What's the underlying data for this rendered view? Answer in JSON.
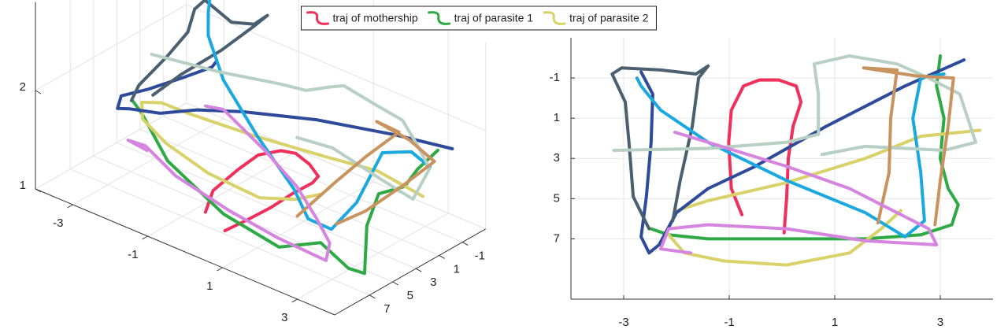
{
  "chart_data": {
    "type": "trajectory",
    "legend_position": "top",
    "grid": true,
    "xlim": [
      -4,
      4
    ],
    "ylim": [
      -3,
      10
    ],
    "zlim": [
      1,
      2.9
    ],
    "xticks": [
      -3,
      -1,
      1,
      3
    ],
    "yticks": [
      -1,
      1,
      3,
      5,
      7
    ],
    "zticks": [
      1,
      2
    ],
    "series": [
      {
        "name": "traj of mothership",
        "color": "#f0305a",
        "x": [
          -0.76,
          -0.96,
          -1.01,
          -0.96,
          -0.73,
          -0.43,
          -0.06,
          0.27,
          0.36,
          0.21,
          0.12,
          0.09,
          0.04
        ],
        "y": [
          5.8,
          4.5,
          2.2,
          0.6,
          -0.6,
          -0.9,
          -0.9,
          -0.6,
          0.2,
          1.4,
          3.0,
          4.9,
          6.7
        ],
        "z": [
          1.0,
          1.1,
          1.15,
          1.2,
          1.2,
          1.2,
          1.15,
          1.1,
          1.1,
          1.05,
          1.0,
          1.0,
          1.0
        ]
      },
      {
        "name": "traj of parasite 1",
        "color": "#2eaa44",
        "x": [
          -2.48,
          -2.15,
          -1.4,
          0.09,
          1.58,
          2.63,
          3.22,
          3.34,
          3.15,
          3.0,
          3.07,
          2.93,
          3.0
        ],
        "y": [
          6.5,
          6.8,
          7.0,
          7.0,
          7.0,
          6.8,
          6.3,
          5.3,
          4.5,
          3.0,
          1.0,
          -0.6,
          -2.1
        ],
        "z": [
          1.9,
          1.85,
          1.5,
          1.2,
          1.1,
          1.3,
          1.1,
          1.0,
          1.4,
          1.6,
          1.55,
          1.6,
          1.7
        ]
      },
      {
        "name": "traj of parasite 2",
        "color": "#d9d26a",
        "x": [
          3.75,
          2.63,
          1.58,
          0.09,
          -1.4,
          -2.0,
          -2.18,
          -1.85,
          -1.1,
          0.09,
          1.28,
          1.88,
          2.25
        ],
        "y": [
          1.6,
          1.9,
          3.0,
          4.2,
          5.1,
          5.6,
          6.7,
          7.7,
          8.1,
          8.3,
          7.7,
          6.5,
          5.6
        ],
        "z": [
          1.6,
          1.7,
          1.75,
          1.8,
          1.85,
          1.9,
          1.95,
          1.9,
          1.8,
          1.7,
          1.6,
          1.6,
          1.65
        ]
      },
      {
        "color": "#2e4a9a",
        "x": [
          3.45,
          2.33,
          0.84,
          -0.51,
          -1.4,
          -2.0,
          -2.33,
          -2.52,
          -2.67,
          -2.57,
          -2.48,
          -2.45,
          -2.67
        ],
        "y": [
          -1.9,
          -0.6,
          1.4,
          3.4,
          4.5,
          5.7,
          7.3,
          7.7,
          6.9,
          4.9,
          2.2,
          -0.2,
          -1.3
        ],
        "z": [
          1.8,
          1.85,
          1.9,
          1.9,
          1.85,
          1.8,
          1.9,
          1.9,
          1.95,
          1.9,
          1.85,
          1.8,
          1.75
        ]
      },
      {
        "color": "#4a6070",
        "x": [
          -2.07,
          -1.93,
          -1.7,
          -1.58,
          -1.4,
          -1.63,
          -2.3,
          -3.04,
          -3.22,
          -2.97,
          -2.9,
          -2.82,
          -2.52
        ],
        "y": [
          6.1,
          4.1,
          1.4,
          -1.0,
          -1.6,
          -1.2,
          -1.4,
          -1.5,
          -1.2,
          0.2,
          2.2,
          4.9,
          6.5
        ],
        "z": [
          2.0,
          2.1,
          2.2,
          2.3,
          2.4,
          2.3,
          2.2,
          2.3,
          2.2,
          2.1,
          2.0,
          1.9,
          1.9
        ]
      },
      {
        "color": "#1aa8e0",
        "x": [
          3.07,
          2.63,
          2.48,
          2.63,
          2.7,
          2.33,
          1.58,
          0.09,
          -1.4,
          -2.3,
          -2.67,
          -2.75
        ],
        "y": [
          -1.2,
          -1.0,
          1.0,
          3.7,
          6.1,
          6.9,
          5.7,
          4.1,
          2.2,
          0.6,
          -0.6,
          -1.0
        ],
        "z": [
          1.6,
          1.7,
          1.8,
          1.5,
          1.4,
          1.5,
          1.6,
          1.8,
          2.0,
          2.2,
          2.3,
          2.4
        ]
      },
      {
        "color": "#b8cfc4",
        "x": [
          -3.19,
          -1.4,
          0.09,
          0.69,
          0.69,
          0.61,
          1.28,
          2.18,
          2.78,
          3.37,
          3.67,
          3.07,
          1.58,
          0.76
        ],
        "y": [
          2.6,
          2.5,
          2.2,
          1.8,
          -0.2,
          -1.7,
          -2.1,
          -1.7,
          -1.0,
          -0.2,
          2.2,
          2.6,
          2.4,
          2.8
        ],
        "z": [
          2.0,
          2.1,
          2.2,
          2.2,
          2.1,
          2.0,
          1.9,
          1.9,
          1.8,
          1.7,
          1.6,
          1.7,
          1.8,
          1.8
        ]
      },
      {
        "color": "#c8935e",
        "x": [
          1.82,
          2.03,
          2.06,
          2.18,
          1.55,
          2.55,
          3.25,
          3.15,
          3.0,
          2.9
        ],
        "y": [
          6.2,
          3.7,
          1.0,
          -1.4,
          -1.5,
          -1.1,
          -1.0,
          1.4,
          4.1,
          6.3
        ],
        "z": [
          1.4,
          1.6,
          1.7,
          1.8,
          1.8,
          1.8,
          1.7,
          1.6,
          1.5,
          1.5
        ]
      },
      {
        "color": "#d585e0",
        "x": [
          -2.03,
          -1.4,
          0.09,
          1.28,
          2.18,
          2.78,
          2.93,
          1.58,
          0.09,
          -1.4,
          -2.15,
          -2.3,
          -1.73
        ],
        "y": [
          1.7,
          2.2,
          3.4,
          4.5,
          5.7,
          6.5,
          7.3,
          7.1,
          6.5,
          6.3,
          6.5,
          7.5,
          7.7
        ],
        "z": [
          1.6,
          1.7,
          1.6,
          1.5,
          1.4,
          1.3,
          1.2,
          1.2,
          1.2,
          1.3,
          1.5,
          1.6,
          1.6
        ]
      }
    ]
  }
}
